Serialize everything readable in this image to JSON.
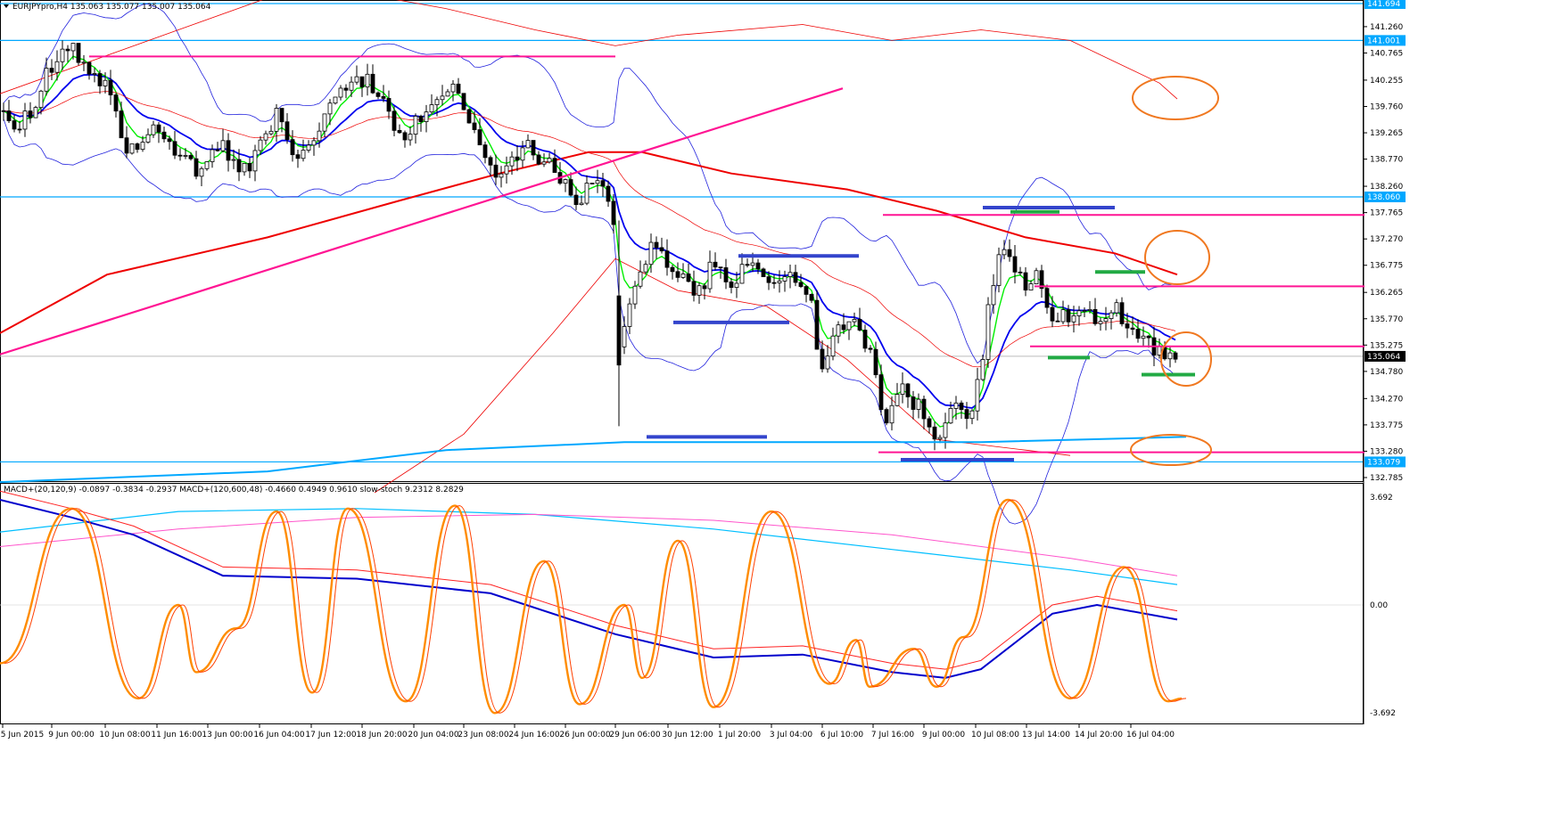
{
  "window": {
    "main_header": "EURJPYpro,H4  135.063 135.077 135.007 135.064",
    "sub_header": "MACD+(20,120,9) -0.0897 -0.3834 -0.2937  MACD+(120,600,48) -0.4660 0.4949 0.9610  slow-stoch 9.2312 8.2829"
  },
  "colors": {
    "candle_up": "#ffffff",
    "candle_down": "#000000",
    "ema_fast": "#00ee00",
    "ema_mid": "#0000ee",
    "ema_slow": "#ee0000",
    "bollinger": "#2222dd",
    "trend_line": "#ff1493",
    "level_line": "#00a8ff",
    "support_bar": "#3344cc",
    "green_bar": "#22aa44",
    "highlight": "#f07820",
    "stoch_k": "#ff8c00",
    "stoch_d": "#ff4000",
    "macd_slow_a": "#00bfff",
    "macd_slow_b": "#ff55cc"
  },
  "chart_data": [
    {
      "type": "candlestick",
      "symbol": "EURJPYpro",
      "timeframe": "H4",
      "ylim": [
        132.785,
        141.694
      ],
      "y_ticks": [
        "141.260",
        "140.765",
        "140.255",
        "139.760",
        "139.265",
        "138.770",
        "138.260",
        "137.765",
        "137.270",
        "136.775",
        "136.265",
        "135.770",
        "135.275",
        "134.780",
        "134.270",
        "133.775",
        "133.280",
        "132.785"
      ],
      "price_tags": [
        {
          "label": "141.694",
          "value": 141.694,
          "color": "#00a8ff"
        },
        {
          "label": "141.001",
          "value": 141.001,
          "color": "#00a8ff"
        },
        {
          "label": "138.060",
          "value": 138.06,
          "color": "#00a8ff"
        },
        {
          "label": "135.064",
          "value": 135.064,
          "color": "#000000"
        },
        {
          "label": "133.079",
          "value": 133.079,
          "color": "#00a8ff"
        }
      ],
      "horizontal_levels": [
        141.694,
        141.001,
        138.06,
        133.079
      ],
      "x_labels": [
        "5 Jun 2015",
        "9 Jun 00:00",
        "10 Jun 08:00",
        "11 Jun 16:00",
        "13 Jun 00:00",
        "16 Jun 04:00",
        "17 Jun 12:00",
        "18 Jun 20:00",
        "20 Jun 04:00",
        "23 Jun 08:00",
        "24 Jun 16:00",
        "26 Jun 00:00",
        "29 Jun 06:00",
        "30 Jun 12:00",
        "1 Jul 20:00",
        "3 Jul 04:00",
        "6 Jul 10:00",
        "7 Jul 16:00",
        "9 Jul 00:00",
        "10 Jul 08:00",
        "13 Jul 14:00",
        "14 Jul 20:00",
        "16 Jul 04:00"
      ],
      "close_path": [
        [
          0,
          139.8
        ],
        [
          10,
          139.5
        ],
        [
          20,
          139.3
        ],
        [
          30,
          139.6
        ],
        [
          40,
          139.9
        ],
        [
          50,
          140.3
        ],
        [
          60,
          140.6
        ],
        [
          70,
          140.8
        ],
        [
          80,
          140.9
        ],
        [
          90,
          140.7
        ],
        [
          100,
          140.4
        ],
        [
          110,
          140.1
        ],
        [
          120,
          140.5
        ],
        [
          130,
          139.6
        ],
        [
          140,
          139.0
        ],
        [
          150,
          139.2
        ],
        [
          160,
          139.0
        ],
        [
          170,
          139.3
        ],
        [
          180,
          139.1
        ],
        [
          190,
          139.0
        ],
        [
          200,
          138.9
        ],
        [
          210,
          138.9
        ],
        [
          220,
          138.6
        ],
        [
          230,
          138.7
        ],
        [
          240,
          138.9
        ],
        [
          250,
          139.0
        ],
        [
          260,
          138.8
        ],
        [
          270,
          138.5
        ],
        [
          280,
          138.6
        ],
        [
          290,
          138.9
        ],
        [
          300,
          139.3
        ],
        [
          310,
          139.6
        ],
        [
          320,
          139.1
        ],
        [
          330,
          138.8
        ],
        [
          340,
          138.9
        ],
        [
          350,
          139.1
        ],
        [
          360,
          139.4
        ],
        [
          370,
          139.7
        ],
        [
          380,
          139.9
        ],
        [
          390,
          140.1
        ],
        [
          400,
          140.2
        ],
        [
          410,
          140.3
        ],
        [
          420,
          140.1
        ],
        [
          430,
          139.8
        ],
        [
          440,
          139.5
        ],
        [
          450,
          139.2
        ],
        [
          460,
          139.4
        ],
        [
          470,
          139.6
        ],
        [
          480,
          139.5
        ],
        [
          490,
          139.8
        ],
        [
          500,
          140.1
        ],
        [
          510,
          140.2
        ],
        [
          520,
          139.8
        ],
        [
          530,
          139.4
        ],
        [
          540,
          138.9
        ],
        [
          550,
          138.6
        ],
        [
          560,
          138.5
        ],
        [
          570,
          138.7
        ],
        [
          580,
          138.8
        ],
        [
          590,
          139.0
        ],
        [
          600,
          138.9
        ],
        [
          610,
          138.7
        ],
        [
          620,
          138.6
        ],
        [
          630,
          138.3
        ],
        [
          640,
          138.1
        ],
        [
          650,
          138.0
        ],
        [
          660,
          138.2
        ],
        [
          670,
          138.4
        ],
        [
          680,
          138.1
        ],
        [
          690,
          137.5
        ],
        [
          695,
          134.8
        ],
        [
          700,
          135.6
        ],
        [
          710,
          136.3
        ],
        [
          720,
          136.7
        ],
        [
          730,
          137.3
        ],
        [
          740,
          137.1
        ],
        [
          750,
          136.8
        ],
        [
          760,
          136.5
        ],
        [
          770,
          136.4
        ],
        [
          780,
          136.3
        ],
        [
          790,
          136.5
        ],
        [
          800,
          136.8
        ],
        [
          810,
          136.5
        ],
        [
          820,
          136.3
        ],
        [
          830,
          136.6
        ],
        [
          840,
          136.7
        ],
        [
          850,
          136.6
        ],
        [
          860,
          136.5
        ],
        [
          870,
          136.3
        ],
        [
          880,
          136.5
        ],
        [
          890,
          136.6
        ],
        [
          900,
          136.4
        ],
        [
          910,
          136.1
        ],
        [
          920,
          134.8
        ],
        [
          930,
          135.1
        ],
        [
          940,
          135.6
        ],
        [
          950,
          135.8
        ],
        [
          960,
          135.6
        ],
        [
          970,
          135.3
        ],
        [
          980,
          135.0
        ],
        [
          990,
          133.9
        ],
        [
          1000,
          134.1
        ],
        [
          1010,
          134.6
        ],
        [
          1020,
          134.3
        ],
        [
          1030,
          134.1
        ],
        [
          1040,
          133.9
        ],
        [
          1050,
          133.6
        ],
        [
          1060,
          133.8
        ],
        [
          1070,
          134.2
        ],
        [
          1080,
          133.9
        ],
        [
          1090,
          134.0
        ],
        [
          1100,
          134.9
        ],
        [
          1110,
          136.2
        ],
        [
          1120,
          137.0
        ],
        [
          1130,
          136.9
        ],
        [
          1140,
          136.7
        ],
        [
          1150,
          136.4
        ],
        [
          1160,
          136.6
        ],
        [
          1170,
          136.3
        ],
        [
          1180,
          135.8
        ],
        [
          1190,
          135.9
        ],
        [
          1200,
          135.6
        ],
        [
          1210,
          135.8
        ],
        [
          1220,
          135.9
        ],
        [
          1230,
          135.8
        ],
        [
          1240,
          135.9
        ],
        [
          1250,
          136.0
        ],
        [
          1260,
          135.8
        ],
        [
          1270,
          135.6
        ],
        [
          1280,
          135.5
        ],
        [
          1290,
          135.3
        ],
        [
          1300,
          135.1
        ],
        [
          1310,
          135.0
        ],
        [
          1320,
          135.064
        ]
      ],
      "support_resistance_lines": [
        {
          "start": [
            100,
            140.7
          ],
          "end": [
            690,
            140.7
          ],
          "color": "#ff1493"
        },
        {
          "start": [
            990,
            137.72
          ],
          "end": [
            1530,
            137.72
          ],
          "color": "#ff1493"
        },
        {
          "start": [
            1160,
            136.38
          ],
          "end": [
            1530,
            136.38
          ],
          "color": "#ff1493"
        },
        {
          "start": [
            1155,
            135.25
          ],
          "end": [
            1530,
            135.25
          ],
          "color": "#ff1493"
        },
        {
          "start": [
            985,
            133.26
          ],
          "end": [
            1530,
            133.26
          ],
          "color": "#ff1493"
        }
      ],
      "trend_line": {
        "start": [
          0,
          135.1
        ],
        "end": [
          945,
          140.1
        ],
        "color": "#ff1493"
      }
    },
    {
      "type": "line",
      "name": "indicator",
      "y_ticks": [
        "3.692",
        "0.00",
        "-3.692"
      ],
      "ylim": [
        -3.692,
        3.692
      ]
    }
  ]
}
